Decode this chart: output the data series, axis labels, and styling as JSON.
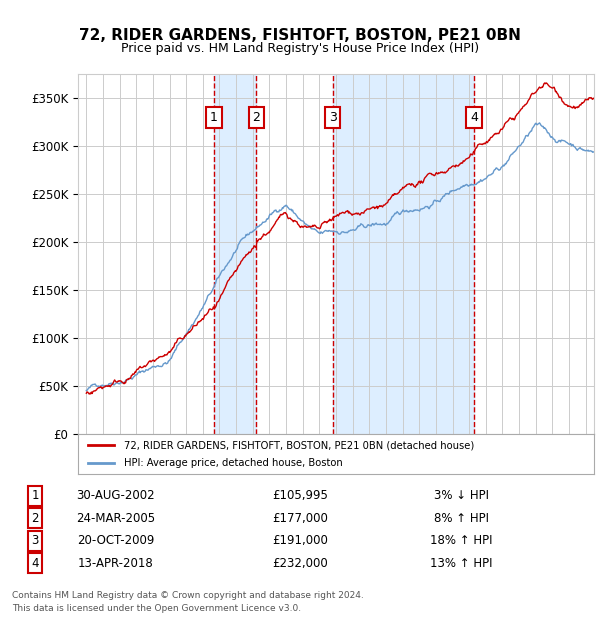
{
  "title": "72, RIDER GARDENS, FISHTOFT, BOSTON, PE21 0BN",
  "subtitle": "Price paid vs. HM Land Registry's House Price Index (HPI)",
  "legend_line1": "72, RIDER GARDENS, FISHTOFT, BOSTON, PE21 0BN (detached house)",
  "legend_line2": "HPI: Average price, detached house, Boston",
  "footer1": "Contains HM Land Registry data © Crown copyright and database right 2024.",
  "footer2": "This data is licensed under the Open Government Licence v3.0.",
  "transactions": [
    {
      "num": 1,
      "date": "30-AUG-2002",
      "price": 105995,
      "pct": "3%",
      "dir": "↓",
      "x_year": 2002.66
    },
    {
      "num": 2,
      "date": "24-MAR-2005",
      "price": 177000,
      "pct": "8%",
      "dir": "↑",
      "x_year": 2005.22
    },
    {
      "num": 3,
      "date": "20-OCT-2009",
      "price": 191000,
      "pct": "18%",
      "dir": "↑",
      "x_year": 2009.8
    },
    {
      "num": 4,
      "date": "13-APR-2018",
      "price": 232000,
      "pct": "13%",
      "dir": "↑",
      "x_year": 2018.28
    }
  ],
  "hpi_color": "#6699cc",
  "price_color": "#cc0000",
  "vline_color": "#cc0000",
  "shade_color": "#ddeeff",
  "grid_color": "#cccccc",
  "bg_color": "#ffffff",
  "ylim": [
    0,
    375000
  ],
  "yticks": [
    0,
    50000,
    100000,
    150000,
    200000,
    250000,
    300000,
    350000
  ],
  "xlim_start": 1994.5,
  "xlim_end": 2025.5
}
